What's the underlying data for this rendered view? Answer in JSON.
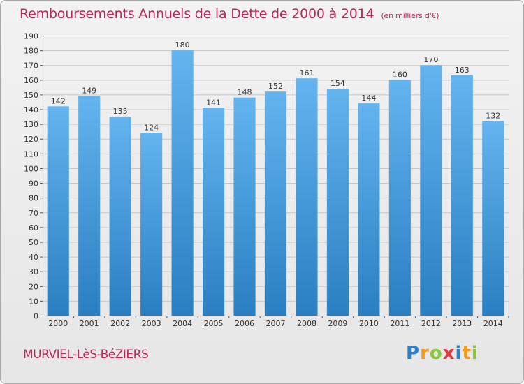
{
  "header": {
    "title": "Remboursements Annuels de la Dette de 2000 à 2014",
    "unit": "(en milliers d'€)"
  },
  "footer": {
    "commune": "MURVIEL-LèS-BéZIERS",
    "logo": [
      "P",
      "r",
      "o",
      "x",
      "i",
      "t",
      "i"
    ],
    "logo_colors": [
      "#2e7fc9",
      "#f29a1f",
      "#8cc43f",
      "#e43a3a",
      "#2e7fc9",
      "#f29a1f",
      "#8cc43f"
    ]
  },
  "colors": {
    "bar_light": "#63b4ef",
    "bar_dark": "#2a7fc2",
    "grid": "#c8c8c8",
    "axis": "#555555"
  },
  "chart_data": {
    "type": "bar",
    "title": "Remboursements Annuels de la Dette de 2000 à 2014",
    "xlabel": "",
    "ylabel": "",
    "categories": [
      "2000",
      "2001",
      "2002",
      "2003",
      "2004",
      "2005",
      "2006",
      "2007",
      "2008",
      "2009",
      "2010",
      "2011",
      "2012",
      "2013",
      "2014"
    ],
    "values": [
      142,
      149,
      135,
      124,
      180,
      141,
      148,
      152,
      161,
      154,
      144,
      160,
      170,
      163,
      132
    ],
    "ylim": [
      0,
      190
    ],
    "ytick_step": 10,
    "grid": true
  }
}
